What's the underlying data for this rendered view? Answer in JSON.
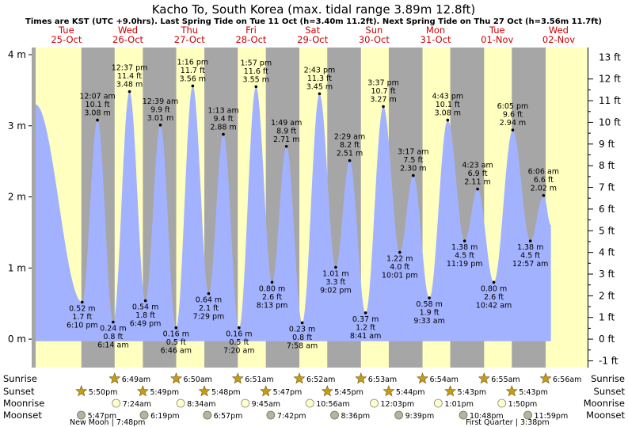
{
  "title": "Kacho To, South Korea (max. tidal range 3.89m 12.8ft)",
  "subtitle": "Times are KST (UTC +9.0hrs). Last Spring Tide on Tue 11 Oct (h=3.40m 11.2ft). Next Spring Tide on Thu 27 Oct (h=3.56m 11.7ft)",
  "colors": {
    "day": "#ffffc0",
    "night": "#a6a6a6",
    "water": "#a3b2ff",
    "daylabel": "#cc0000",
    "sun": "#c89b17",
    "moonrise": "#ffffd2",
    "moonset": "#b4b4a0"
  },
  "days": [
    {
      "dow": "Tue",
      "date": "25-Oct"
    },
    {
      "dow": "Wed",
      "date": "26-Oct"
    },
    {
      "dow": "Thu",
      "date": "27-Oct"
    },
    {
      "dow": "Fri",
      "date": "28-Oct"
    },
    {
      "dow": "Sat",
      "date": "29-Oct"
    },
    {
      "dow": "Sun",
      "date": "30-Oct"
    },
    {
      "dow": "Mon",
      "date": "31-Oct"
    },
    {
      "dow": "Tue",
      "date": "01-Nov"
    },
    {
      "dow": "Wed",
      "date": "02-Nov"
    }
  ],
  "row_labels": {
    "sunrise": "Sunrise",
    "sunset": "Sunset",
    "moonrise": "Moonrise",
    "moonset": "Moonset"
  },
  "events": {
    "sunrise": [
      "6:49am",
      "6:50am",
      "6:51am",
      "6:52am",
      "6:53am",
      "6:54am",
      "6:55am",
      "6:56am"
    ],
    "sunset": [
      "5:50pm",
      "5:49pm",
      "5:48pm",
      "5:47pm",
      "5:45pm",
      "5:44pm",
      "5:43pm",
      "5:43pm"
    ],
    "moonrise": [
      "7:24am",
      "8:34am",
      "9:45am",
      "10:56am",
      "12:03pm",
      "1:01pm",
      "1:50pm"
    ],
    "moonset": [
      "5:47pm",
      "6:19pm",
      "6:57pm",
      "7:42pm",
      "8:36pm",
      "9:39pm",
      "10:48pm",
      "11:59pm"
    ]
  },
  "moon_phases": [
    "New Moon | 7:48pm",
    "First Quarter | 3:38pm"
  ],
  "chart_data": {
    "type": "area",
    "title": "Kacho To, South Korea (max. tidal range 3.89m 12.8ft)",
    "y_axis_left": {
      "unit": "m",
      "ticks": [
        "0 m",
        "1 m",
        "2 m",
        "3 m",
        "4 m"
      ],
      "range": [
        -0.4,
        4.1
      ]
    },
    "y_axis_right": {
      "unit": "ft",
      "ticks": [
        "-1 ft",
        "0 ft",
        "1 ft",
        "2 ft",
        "3 ft",
        "4 ft",
        "5 ft",
        "6 ft",
        "7 ft",
        "8 ft",
        "9 ft",
        "10 ft",
        "11 ft",
        "12 ft",
        "13 ft"
      ]
    },
    "x_range": [
      "2022-10-25 00:00",
      "2022-11-02 24:00"
    ],
    "extremes": [
      {
        "kind": "high",
        "time": "2022-10-25 00:00",
        "height_m": 3.3
      },
      {
        "kind": "low",
        "time": "2022-10-25 18:10",
        "height_m": 0.52,
        "label": [
          "0.52 m",
          "1.7 ft",
          "6:10 pm"
        ]
      },
      {
        "kind": "high",
        "time": "2022-10-26 00:07",
        "height_m": 3.08,
        "label": [
          "12:07 am",
          "10.1 ft",
          "3.08 m"
        ]
      },
      {
        "kind": "low",
        "time": "2022-10-26 06:14",
        "height_m": 0.24,
        "label": [
          "0.24 m",
          "0.8 ft",
          "6:14 am"
        ]
      },
      {
        "kind": "high",
        "time": "2022-10-26 12:37",
        "height_m": 3.48,
        "label": [
          "12:37 pm",
          "11.4 ft",
          "3.48 m"
        ]
      },
      {
        "kind": "low",
        "time": "2022-10-26 18:49",
        "height_m": 0.54,
        "label": [
          "0.54 m",
          "1.8 ft",
          "6:49 pm"
        ]
      },
      {
        "kind": "high",
        "time": "2022-10-27 00:39",
        "height_m": 3.01,
        "label": [
          "12:39 am",
          "9.9 ft",
          "3.01 m"
        ]
      },
      {
        "kind": "low",
        "time": "2022-10-27 06:46",
        "height_m": 0.16,
        "label": [
          "0.16 m",
          "0.5 ft",
          "6:46 am"
        ]
      },
      {
        "kind": "high",
        "time": "2022-10-27 13:16",
        "height_m": 3.56,
        "label": [
          "1:16 pm",
          "11.7 ft",
          "3.56 m"
        ]
      },
      {
        "kind": "low",
        "time": "2022-10-27 19:29",
        "height_m": 0.64,
        "label": [
          "0.64 m",
          "2.1 ft",
          "7:29 pm"
        ]
      },
      {
        "kind": "high",
        "time": "2022-10-28 01:13",
        "height_m": 2.88,
        "label": [
          "1:13 am",
          "9.4 ft",
          "2.88 m"
        ]
      },
      {
        "kind": "low",
        "time": "2022-10-28 07:20",
        "height_m": 0.16,
        "label": [
          "0.16 m",
          "0.5 ft",
          "7:20 am"
        ]
      },
      {
        "kind": "high",
        "time": "2022-10-28 13:57",
        "height_m": 3.55,
        "label": [
          "1:57 pm",
          "11.6 ft",
          "3.55 m"
        ]
      },
      {
        "kind": "low",
        "time": "2022-10-28 20:13",
        "height_m": 0.8,
        "label": [
          "0.80 m",
          "2.6 ft",
          "8:13 pm"
        ]
      },
      {
        "kind": "high",
        "time": "2022-10-29 01:49",
        "height_m": 2.71,
        "label": [
          "1:49 am",
          "8.9 ft",
          "2.71 m"
        ]
      },
      {
        "kind": "low",
        "time": "2022-10-29 07:58",
        "height_m": 0.23,
        "label": [
          "0.23 m",
          "0.8 ft",
          "7:58 am"
        ]
      },
      {
        "kind": "high",
        "time": "2022-10-29 14:43",
        "height_m": 3.45,
        "label": [
          "2:43 pm",
          "11.3 ft",
          "3.45 m"
        ]
      },
      {
        "kind": "low",
        "time": "2022-10-29 21:02",
        "height_m": 1.01,
        "label": [
          "1.01 m",
          "3.3 ft",
          "9:02 pm"
        ]
      },
      {
        "kind": "high",
        "time": "2022-10-30 02:29",
        "height_m": 2.51,
        "label": [
          "2:29 am",
          "8.2 ft",
          "2.51 m"
        ]
      },
      {
        "kind": "low",
        "time": "2022-10-30 08:41",
        "height_m": 0.37,
        "label": [
          "0.37 m",
          "1.2 ft",
          "8:41 am"
        ]
      },
      {
        "kind": "high",
        "time": "2022-10-30 15:37",
        "height_m": 3.27,
        "label": [
          "3:37 pm",
          "10.7 ft",
          "3.27 m"
        ]
      },
      {
        "kind": "low",
        "time": "2022-10-30 22:01",
        "height_m": 1.22,
        "label": [
          "1.22 m",
          "4.0 ft",
          "10:01 pm"
        ]
      },
      {
        "kind": "high",
        "time": "2022-10-31 03:17",
        "height_m": 2.3,
        "label": [
          "3:17 am",
          "7.5 ft",
          "2.30 m"
        ]
      },
      {
        "kind": "low",
        "time": "2022-10-31 09:33",
        "height_m": 0.58,
        "label": [
          "0.58 m",
          "1.9 ft",
          "9:33 am"
        ]
      },
      {
        "kind": "high",
        "time": "2022-10-31 16:43",
        "height_m": 3.08,
        "label": [
          "4:43 pm",
          "10.1 ft",
          "3.08 m"
        ]
      },
      {
        "kind": "low",
        "time": "2022-10-31 23:19",
        "height_m": 1.38,
        "label": [
          "1.38 m",
          "4.5 ft",
          "11:19 pm"
        ]
      },
      {
        "kind": "high",
        "time": "2022-11-01 04:23",
        "height_m": 2.11,
        "label": [
          "4:23 am",
          "6.9 ft",
          "2.11 m"
        ]
      },
      {
        "kind": "low",
        "time": "2022-11-01 10:42",
        "height_m": 0.8,
        "label": [
          "0.80 m",
          "2.6 ft",
          "10:42 am"
        ]
      },
      {
        "kind": "high",
        "time": "2022-11-01 18:05",
        "height_m": 2.94,
        "label": [
          "6:05 pm",
          "9.6 ft",
          "2.94 m"
        ]
      },
      {
        "kind": "low",
        "time": "2022-11-02 00:57",
        "height_m": 1.38,
        "label": [
          "1.38 m",
          "4.5 ft",
          "12:57 am"
        ]
      },
      {
        "kind": "high",
        "time": "2022-11-02 06:06",
        "height_m": 2.02,
        "label": [
          "6:06 am",
          "6.6 ft",
          "2.02 m"
        ]
      },
      {
        "kind": "end",
        "time": "2022-11-02 09:00",
        "height_m": 1.6
      }
    ]
  }
}
